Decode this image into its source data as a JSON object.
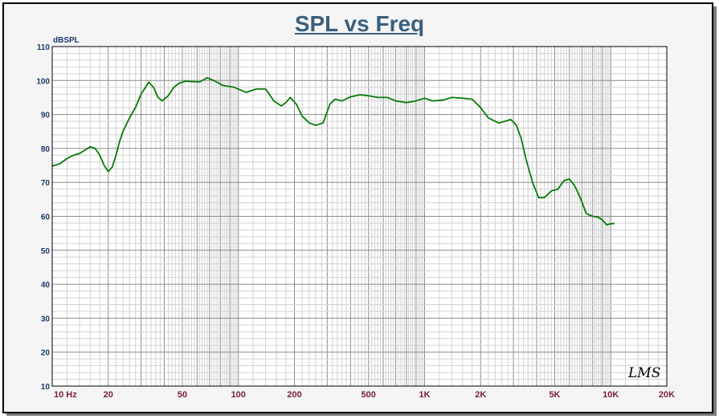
{
  "chart_data": {
    "type": "line",
    "title": "SPL vs Freq",
    "ylabel": "dBSPL",
    "xscale": "log",
    "xlim": [
      10,
      20000
    ],
    "ylim": [
      10,
      110
    ],
    "grid": true,
    "x_ticks": [
      {
        "value": 10,
        "label": "10  Hz"
      },
      {
        "value": 20,
        "label": "20"
      },
      {
        "value": 50,
        "label": "50"
      },
      {
        "value": 100,
        "label": "100"
      },
      {
        "value": 200,
        "label": "200"
      },
      {
        "value": 500,
        "label": "500"
      },
      {
        "value": 1000,
        "label": "1K"
      },
      {
        "value": 2000,
        "label": "2K"
      },
      {
        "value": 5000,
        "label": "5K"
      },
      {
        "value": 10000,
        "label": "10K"
      },
      {
        "value": 20000,
        "label": "20K"
      }
    ],
    "y_ticks": [
      10,
      20,
      30,
      40,
      50,
      60,
      70,
      80,
      90,
      100,
      110
    ],
    "series": [
      {
        "color": "#0a7a0a",
        "x": [
          10,
          11,
          12,
          13,
          14,
          15,
          16,
          17,
          18,
          19,
          20,
          21,
          22,
          23,
          24,
          26,
          28,
          30,
          33,
          35,
          37,
          39,
          42,
          45,
          48,
          52,
          56,
          62,
          68,
          75,
          82,
          88,
          95,
          100,
          110,
          125,
          140,
          155,
          170,
          180,
          190,
          205,
          220,
          240,
          260,
          285,
          310,
          330,
          360,
          400,
          450,
          500,
          560,
          630,
          700,
          800,
          900,
          1000,
          1100,
          1250,
          1400,
          1600,
          1800,
          2000,
          2200,
          2500,
          2700,
          2900,
          3100,
          3300,
          3500,
          3800,
          4100,
          4400,
          4800,
          5200,
          5600,
          6000,
          6400,
          6800,
          7400,
          8000,
          8500,
          9000,
          9500,
          10000,
          10500
        ],
        "y": [
          74.8,
          75.5,
          77,
          78,
          78.5,
          79.5,
          80.5,
          80,
          78,
          75,
          73.2,
          74.5,
          78,
          82,
          85,
          89,
          92,
          96,
          99.5,
          98,
          95,
          94,
          95.5,
          98,
          99.2,
          99.8,
          99.7,
          99.6,
          100.8,
          99.8,
          98.6,
          98.3,
          98,
          97.5,
          96.5,
          97.5,
          97.5,
          94,
          92.5,
          93.5,
          95,
          93,
          89.5,
          87.5,
          86.8,
          87.5,
          93,
          94.5,
          94,
          95.2,
          95.8,
          95.5,
          95,
          95,
          94,
          93.5,
          94,
          94.8,
          94,
          94.2,
          95,
          94.8,
          94.5,
          92,
          89,
          87.5,
          88,
          88.5,
          87,
          83,
          77,
          70,
          65.5,
          65.5,
          67.5,
          68,
          70.5,
          71,
          69,
          66,
          60.8,
          60,
          59.8,
          59,
          57.5,
          57.8,
          57.9
        ]
      }
    ]
  },
  "logo_text": "LMS"
}
